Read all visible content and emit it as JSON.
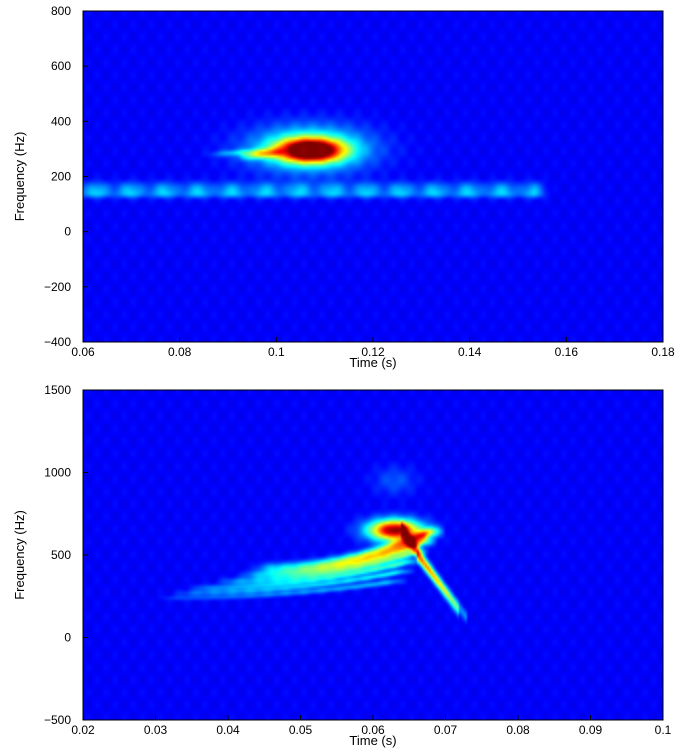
{
  "chart_data": [
    {
      "type": "heatmap",
      "subtype": "spectrogram",
      "colormap": "jet",
      "background_color": "#00008f",
      "xlabel": "Time (s)",
      "ylabel": "Frequency (Hz)",
      "xlim": [
        0.06,
        0.18
      ],
      "ylim": [
        -400,
        800
      ],
      "xticks": [
        0.06,
        0.08,
        0.1,
        0.12,
        0.14,
        0.16,
        0.18
      ],
      "xtick_labels": [
        "0.06",
        "0.08",
        "0.1",
        "0.12",
        "0.14",
        "0.16",
        "0.18"
      ],
      "yticks": [
        -400,
        -200,
        0,
        200,
        400,
        600,
        800
      ],
      "ytick_labels": [
        "−400",
        "−200",
        "0",
        "200",
        "400",
        "600",
        "800"
      ],
      "features": [
        {
          "kind": "peak",
          "t": 0.107,
          "f": 295,
          "dt": 0.0045,
          "df": 28,
          "intensity": 1.0
        },
        {
          "kind": "peak",
          "t": 0.107,
          "f": 300,
          "dt": 0.008,
          "df": 55,
          "intensity": 0.45
        },
        {
          "kind": "ridge",
          "t0": 0.092,
          "t1": 0.104,
          "f0": 270,
          "f1": 292,
          "width": 10,
          "intensity": 0.32
        },
        {
          "kind": "ridge",
          "t0": 0.086,
          "t1": 0.104,
          "f0": 280,
          "f1": 300,
          "width": 8,
          "intensity": 0.2
        },
        {
          "kind": "band",
          "t0": 0.06,
          "t1": 0.157,
          "f": 155,
          "width": 18,
          "intensity": 0.2
        },
        {
          "kind": "band",
          "t0": 0.06,
          "t1": 0.157,
          "f": 135,
          "width": 10,
          "intensity": 0.12
        }
      ]
    },
    {
      "type": "heatmap",
      "subtype": "spectrogram",
      "colormap": "jet",
      "background_color": "#00008f",
      "xlabel": "Time (s)",
      "ylabel": "Frequency (Hz)",
      "xlim": [
        0.02,
        0.1
      ],
      "ylim": [
        -500,
        1500
      ],
      "xticks": [
        0.02,
        0.03,
        0.04,
        0.05,
        0.06,
        0.07,
        0.08,
        0.09,
        0.1
      ],
      "xtick_labels": [
        "0.02",
        "0.03",
        "0.04",
        "0.05",
        "0.06",
        "0.07",
        "0.08",
        "0.09",
        "0.1"
      ],
      "yticks": [
        -500,
        0,
        500,
        1000,
        1500
      ],
      "ytick_labels": [
        "−500",
        "0",
        "500",
        "1000",
        "1500"
      ],
      "features": [
        {
          "kind": "peak",
          "t": 0.063,
          "f": 650,
          "dt": 0.0025,
          "df": 45,
          "intensity": 1.0
        },
        {
          "kind": "chirp",
          "t0": 0.045,
          "t1": 0.068,
          "f0": 420,
          "f1": 640,
          "width": 22,
          "intensity": 0.62
        },
        {
          "kind": "chirp",
          "t0": 0.043,
          "t1": 0.067,
          "f0": 380,
          "f1": 580,
          "width": 18,
          "intensity": 0.5
        },
        {
          "kind": "chirp",
          "t0": 0.04,
          "t1": 0.066,
          "f0": 340,
          "f1": 520,
          "width": 16,
          "intensity": 0.42
        },
        {
          "kind": "chirp",
          "t0": 0.036,
          "t1": 0.065,
          "f0": 300,
          "f1": 460,
          "width": 14,
          "intensity": 0.36
        },
        {
          "kind": "chirp",
          "t0": 0.034,
          "t1": 0.064,
          "f0": 270,
          "f1": 400,
          "width": 12,
          "intensity": 0.3
        },
        {
          "kind": "chirp",
          "t0": 0.032,
          "t1": 0.063,
          "f0": 240,
          "f1": 340,
          "width": 12,
          "intensity": 0.22
        },
        {
          "kind": "decay",
          "t0": 0.064,
          "t1": 0.072,
          "f0": 650,
          "f1": 150,
          "width": 30,
          "intensity": 0.55
        },
        {
          "kind": "decay",
          "t0": 0.066,
          "t1": 0.073,
          "f0": 500,
          "f1": 120,
          "width": 25,
          "intensity": 0.35
        },
        {
          "kind": "peak",
          "t": 0.063,
          "f": 950,
          "dt": 0.002,
          "df": 60,
          "intensity": 0.1
        }
      ]
    }
  ]
}
